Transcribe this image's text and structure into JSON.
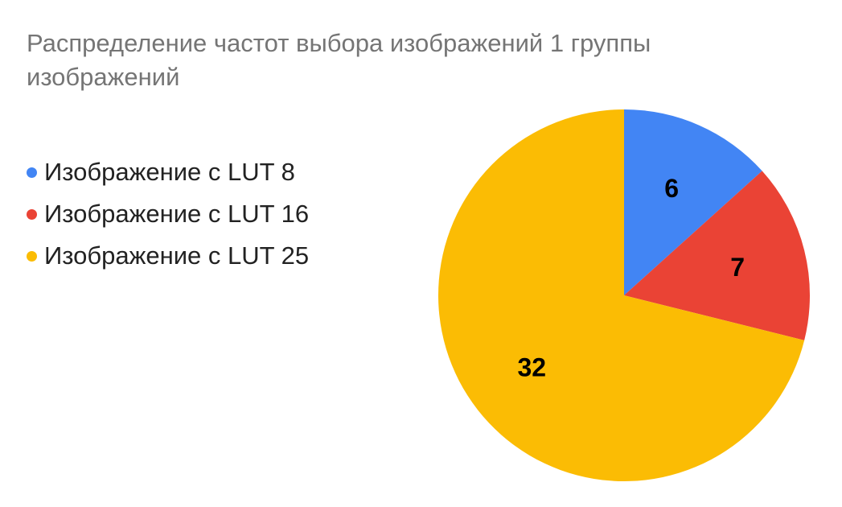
{
  "chart_data": {
    "type": "pie",
    "title": "Распределение частот выбора изображений 1 группы изображений",
    "legend_position": "left",
    "slices": [
      {
        "label": "Изображение с LUT 8",
        "value": 6,
        "color": "#4285f4"
      },
      {
        "label": "Изображение с LUT 16",
        "value": 7,
        "color": "#ea4335"
      },
      {
        "label": "Изображение с LUT 25",
        "value": 32,
        "color": "#fbbc04"
      }
    ]
  }
}
